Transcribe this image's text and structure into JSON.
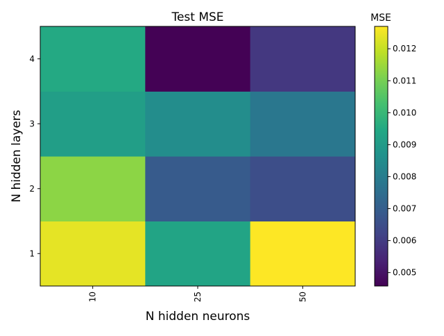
{
  "chart_data": {
    "type": "heatmap",
    "title": "Test MSE",
    "xlabel": "N hidden neurons",
    "ylabel": "N hidden layers",
    "x_categories": [
      "10",
      "25",
      "50"
    ],
    "y_categories": [
      "1",
      "2",
      "3",
      "4"
    ],
    "values": [
      [
        0.0124,
        0.0093,
        0.0127
      ],
      [
        0.0113,
        0.0069,
        0.0065
      ],
      [
        0.0091,
        0.0085,
        0.0078
      ],
      [
        0.0095,
        0.0046,
        0.0059
      ]
    ],
    "colorbar": {
      "title": "MSE",
      "min": 0.00458,
      "max": 0.0127,
      "ticks": [
        0.005,
        0.006,
        0.007,
        0.008,
        0.009,
        0.01,
        0.011,
        0.012
      ],
      "tick_labels": [
        "0.005",
        "0.006",
        "0.007",
        "0.008",
        "0.009",
        "0.010",
        "0.011",
        "0.012"
      ]
    },
    "colormap": "viridis",
    "x_tick_rotation": "vertical",
    "grid": false
  }
}
